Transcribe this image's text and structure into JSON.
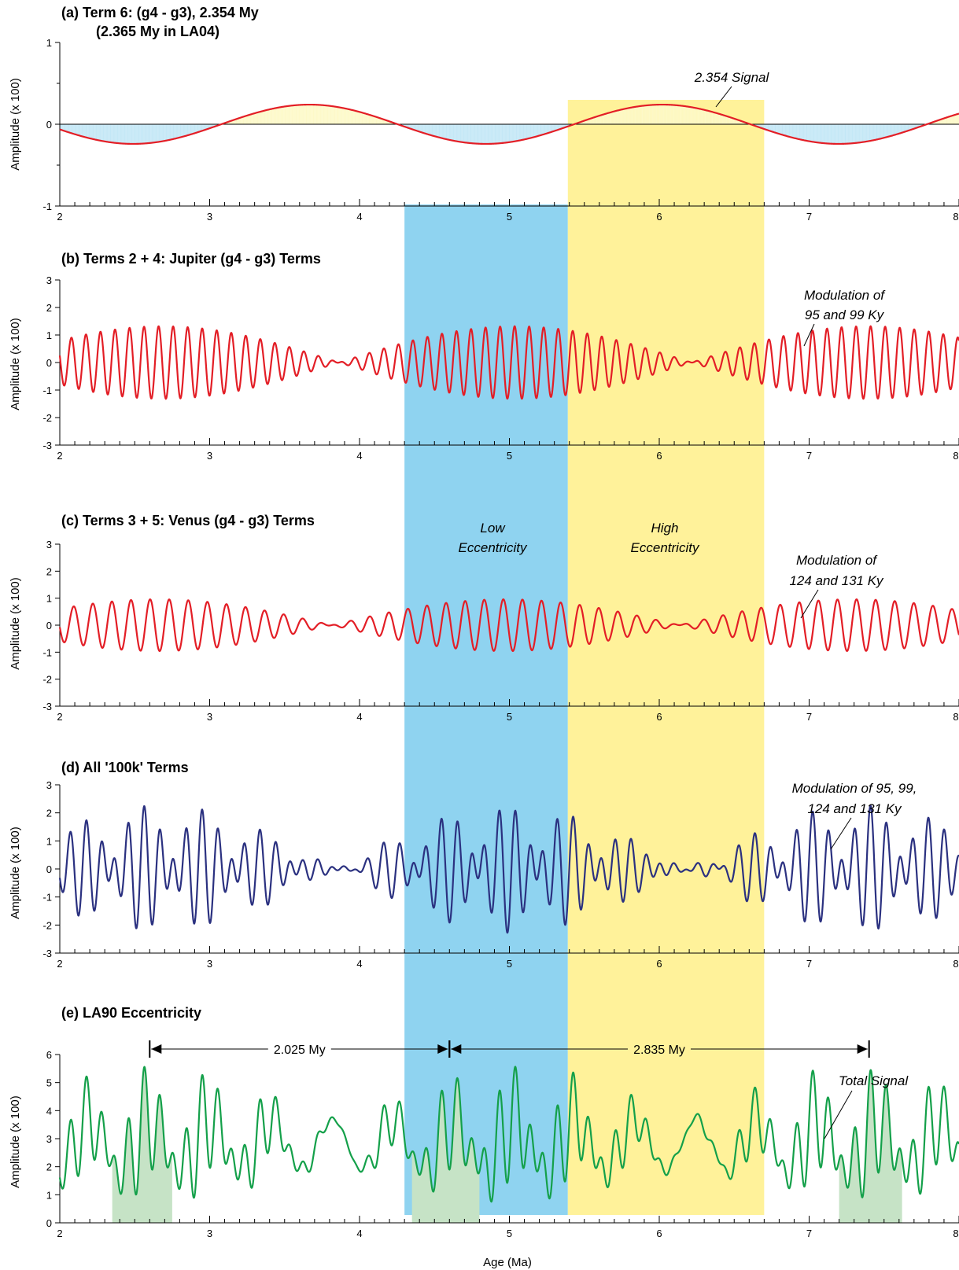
{
  "colors": {
    "low_band": "#8fd3f0",
    "high_band": "#fff29a",
    "red_line": "#e31e26",
    "navy_line": "#2b3180",
    "green_line": "#14a04a",
    "fill_blue": "#c3e7f6",
    "fill_yellow": "#fdf9c8",
    "fill_green": "#c6e3c6"
  },
  "figure": {
    "xlabel": "Age (Ma)",
    "x_ticks": [
      "2",
      "3",
      "4",
      "5",
      "6",
      "7",
      "8"
    ],
    "bands": [
      {
        "name": "Low Eccentricity",
        "line1": "Low",
        "line2": "Eccentricity",
        "x_start": 4.3,
        "x_end": 5.39,
        "color": "#8fd3f0"
      },
      {
        "name": "High Eccentricity",
        "line1": "High",
        "line2": "Eccentricity",
        "x_start": 5.39,
        "x_end": 6.7,
        "color": "#fff29a"
      }
    ]
  },
  "chart_data": [
    {
      "id": "a",
      "type": "line",
      "title_line1": "(a)  Term 6: (g4 - g3), 2.354 My",
      "title_line2": "(2.365 My in LA04)",
      "ylabel": "Amplitude (x 100)",
      "xlim": [
        2,
        8
      ],
      "ylim": [
        -1,
        1
      ],
      "y_ticks": [
        "1",
        "0",
        "-1"
      ],
      "annotations": [
        {
          "lines": [
            "2.354 Signal"
          ]
        }
      ],
      "series": [
        {
          "color": "#e31e26",
          "model": "cosine",
          "amplitude": 0.24,
          "period_my": 2.354,
          "peak_at": 6.02
        }
      ]
    },
    {
      "id": "b",
      "type": "line",
      "title": "(b)  Terms 2 + 4:  Jupiter (g4 - g3) Terms",
      "ylabel": "Amplitude (x 100)",
      "xlim": [
        2,
        8
      ],
      "ylim": [
        -3,
        3
      ],
      "y_ticks": [
        "3",
        "2",
        "1",
        "0",
        "-1",
        "-2",
        "-3"
      ],
      "annotations": [
        {
          "lines": [
            "Modulation of",
            "95 and 99 Ky"
          ]
        }
      ],
      "series": [
        {
          "color": "#e31e26",
          "model": "beat",
          "components": [
            {
              "amplitude": 0.66,
              "period_ky": 95
            },
            {
              "amplitude": 0.66,
              "period_ky": 99
            }
          ]
        }
      ]
    },
    {
      "id": "c",
      "type": "line",
      "title": "(c)  Terms 3 + 5:  Venus (g4 - g3) Terms",
      "ylabel": "Amplitude (x 100)",
      "xlim": [
        2,
        8
      ],
      "ylim": [
        -3,
        3
      ],
      "y_ticks": [
        "3",
        "2",
        "1",
        "0",
        "-1",
        "-2",
        "-3"
      ],
      "annotations": [
        {
          "lines": [
            "Modulation of",
            "124 and 131 Ky"
          ]
        }
      ],
      "series": [
        {
          "color": "#e31e26",
          "model": "beat",
          "components": [
            {
              "amplitude": 0.48,
              "period_ky": 124
            },
            {
              "amplitude": 0.48,
              "period_ky": 131
            }
          ]
        }
      ]
    },
    {
      "id": "d",
      "type": "line",
      "title": "(d)  All  '100k' Terms",
      "ylabel": "Amplitude (x 100)",
      "xlim": [
        2,
        8
      ],
      "ylim": [
        -3,
        3
      ],
      "y_ticks": [
        "3",
        "2",
        "1",
        "0",
        "-1",
        "-2",
        "-3"
      ],
      "annotations": [
        {
          "lines": [
            "Modulation of 95, 99,",
            "124 and 131 Ky"
          ]
        }
      ],
      "series": [
        {
          "color": "#2b3180",
          "model": "beat4",
          "components": [
            {
              "amplitude": 0.66,
              "period_ky": 95
            },
            {
              "amplitude": 0.66,
              "period_ky": 99
            },
            {
              "amplitude": 0.48,
              "period_ky": 124
            },
            {
              "amplitude": 0.48,
              "period_ky": 131
            }
          ]
        }
      ]
    },
    {
      "id": "e",
      "type": "area",
      "title": "(e)  LA90 Eccentricity",
      "ylabel": "Amplitude (x 100)",
      "xlim": [
        2,
        8
      ],
      "ylim": [
        0,
        6
      ],
      "y_ticks": [
        "6",
        "5",
        "4",
        "3",
        "2",
        "1",
        "0"
      ],
      "annotations": [
        {
          "lines": [
            "Total Signal"
          ]
        }
      ],
      "spans": [
        {
          "label": "2.025 My",
          "x_start": 2.6,
          "x_end": 4.6
        },
        {
          "label": "2.835 My",
          "x_start": 4.6,
          "x_end": 7.4
        }
      ],
      "shaded_minima": [
        [
          2.35,
          2.75
        ],
        [
          4.35,
          4.8
        ],
        [
          7.2,
          7.62
        ]
      ],
      "series": [
        {
          "color": "#14a04a",
          "model": "eccentricity",
          "mean": 2.8,
          "components": [
            {
              "amplitude": 0.66,
              "period_ky": 95
            },
            {
              "amplitude": 0.66,
              "period_ky": 99
            },
            {
              "amplitude": 0.48,
              "period_ky": 124
            },
            {
              "amplitude": 0.48,
              "period_ky": 131
            },
            {
              "amplitude": 1.0,
              "period_ky": 405
            }
          ]
        }
      ]
    }
  ]
}
